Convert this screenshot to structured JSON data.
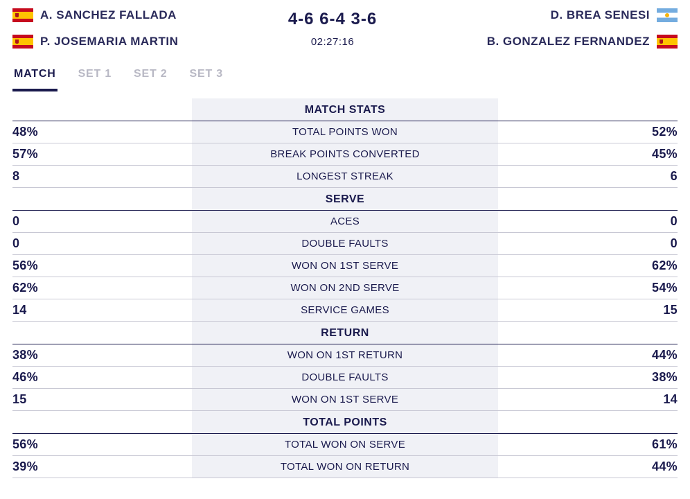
{
  "header": {
    "team_left": {
      "players": [
        {
          "name": "A. SANCHEZ FALLADA",
          "flag": "es"
        },
        {
          "name": "P. JOSEMARIA MARTIN",
          "flag": "es"
        }
      ]
    },
    "team_right": {
      "players": [
        {
          "name": "D. BREA SENESI",
          "flag": "ar"
        },
        {
          "name": "B. GONZALEZ FERNANDEZ",
          "flag": "es"
        }
      ]
    },
    "score": "4-6 6-4 3-6",
    "duration": "02:27:16"
  },
  "tabs": {
    "items": [
      {
        "label": "MATCH",
        "active": true
      },
      {
        "label": "SET 1",
        "active": false
      },
      {
        "label": "SET 2",
        "active": false
      },
      {
        "label": "SET 3",
        "active": false
      }
    ]
  },
  "sections": [
    {
      "title": "MATCH STATS",
      "rows": [
        {
          "left": "48%",
          "label": "TOTAL POINTS WON",
          "right": "52%"
        },
        {
          "left": "57%",
          "label": "BREAK POINTS CONVERTED",
          "right": "45%"
        },
        {
          "left": "8",
          "label": "LONGEST STREAK",
          "right": "6"
        }
      ]
    },
    {
      "title": "SERVE",
      "rows": [
        {
          "left": "0",
          "label": "ACES",
          "right": "0"
        },
        {
          "left": "0",
          "label": "DOUBLE FAULTS",
          "right": "0"
        },
        {
          "left": "56%",
          "label": "WON ON 1ST SERVE",
          "right": "62%"
        },
        {
          "left": "62%",
          "label": "WON ON 2ND SERVE",
          "right": "54%"
        },
        {
          "left": "14",
          "label": "SERVICE GAMES",
          "right": "15"
        }
      ]
    },
    {
      "title": "RETURN",
      "rows": [
        {
          "left": "38%",
          "label": "WON ON 1ST RETURN",
          "right": "44%"
        },
        {
          "left": "46%",
          "label": "DOUBLE FAULTS",
          "right": "38%"
        },
        {
          "left": "15",
          "label": "WON ON 1ST SERVE",
          "right": "14"
        }
      ]
    },
    {
      "title": "TOTAL POINTS",
      "rows": [
        {
          "left": "56%",
          "label": "TOTAL WON ON SERVE",
          "right": "61%"
        },
        {
          "left": "39%",
          "label": "TOTAL WON ON RETURN",
          "right": "44%"
        }
      ]
    }
  ],
  "colors": {
    "text_primary": "#1a1a4d",
    "text_muted": "#b8b8c4",
    "row_border": "#c8c8d4",
    "center_bg": "#f0f1f6",
    "page_bg": "#ffffff"
  }
}
